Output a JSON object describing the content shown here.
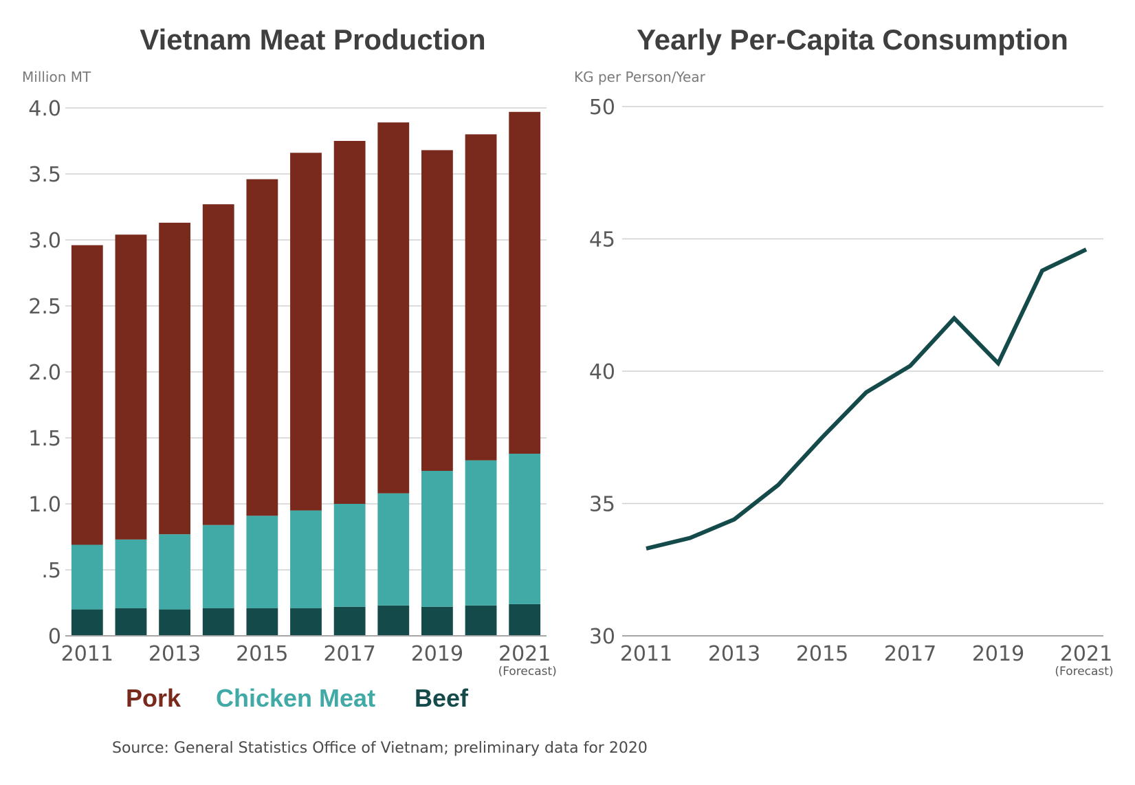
{
  "colors": {
    "pork": "#7a2a1c",
    "chicken": "#42aaa6",
    "beef": "#144a4a",
    "line": "#144a4a",
    "grid": "#d0d0d0",
    "axis": "#a6a6a6"
  },
  "legend": {
    "pork": "Pork",
    "chicken": "Chicken Meat",
    "beef": "Beef"
  },
  "source": "Source: General Statistics Office of Vietnam; preliminary data for 2020",
  "chart_data": [
    {
      "type": "bar",
      "stacked": true,
      "title": "Vietnam Meat Production",
      "ylabel": "Million MT",
      "ylim": [
        0,
        4.0
      ],
      "yticks": [
        0,
        0.5,
        1.0,
        1.5,
        2.0,
        2.5,
        3.0,
        3.5,
        4.0
      ],
      "ytick_labels": [
        "0",
        ".5",
        "1.0",
        "1.5",
        "2.0",
        "2.5",
        "3.0",
        "3.5",
        "4.0"
      ],
      "categories": [
        "2011",
        "2012",
        "2013",
        "2014",
        "2015",
        "2016",
        "2017",
        "2018",
        "2019",
        "2020",
        "2021"
      ],
      "xtick_labels": [
        "2011",
        "2013",
        "2015",
        "2017",
        "2019",
        "2021"
      ],
      "forecast_note": "(Forecast)",
      "series": [
        {
          "name": "Beef",
          "values": [
            0.2,
            0.21,
            0.2,
            0.21,
            0.21,
            0.21,
            0.22,
            0.23,
            0.22,
            0.23,
            0.24
          ]
        },
        {
          "name": "Chicken Meat",
          "values": [
            0.49,
            0.52,
            0.57,
            0.63,
            0.7,
            0.74,
            0.78,
            0.85,
            1.03,
            1.1,
            1.14
          ]
        },
        {
          "name": "Pork",
          "values": [
            2.27,
            2.31,
            2.36,
            2.43,
            2.55,
            2.71,
            2.75,
            2.81,
            2.43,
            2.47,
            2.59
          ]
        }
      ]
    },
    {
      "type": "line",
      "title": "Yearly Per-Capita Consumption",
      "ylabel": "KG per Person/Year",
      "ylim": [
        30,
        50
      ],
      "yticks": [
        30,
        35,
        40,
        45,
        50
      ],
      "ytick_labels": [
        "30",
        "35",
        "40",
        "45",
        "50"
      ],
      "x": [
        "2011",
        "2012",
        "2013",
        "2014",
        "2015",
        "2016",
        "2017",
        "2018",
        "2019",
        "2020",
        "2021"
      ],
      "xtick_labels": [
        "2011",
        "2013",
        "2015",
        "2017",
        "2019",
        "2021"
      ],
      "forecast_note": "(Forecast)",
      "series": [
        {
          "name": "Consumption",
          "values": [
            33.3,
            33.7,
            34.4,
            35.7,
            37.5,
            39.2,
            40.2,
            42.0,
            40.3,
            43.8,
            44.6
          ]
        }
      ]
    }
  ]
}
